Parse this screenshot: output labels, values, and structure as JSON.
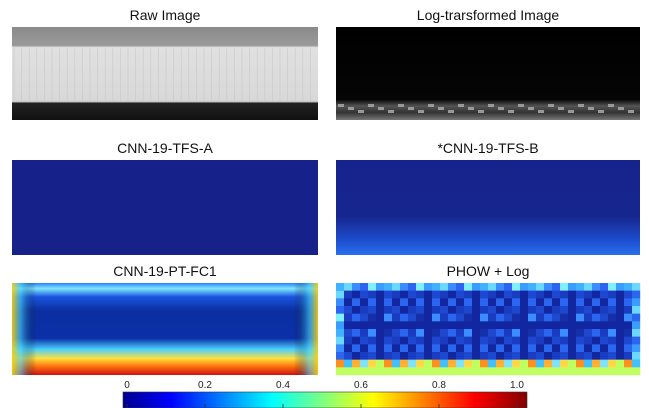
{
  "panels": [
    {
      "title": "Raw Image"
    },
    {
      "title": "Log-trarsformed Image"
    },
    {
      "title": "CNN-19-TFS-A"
    },
    {
      "title": "*CNN-19-TFS-B"
    },
    {
      "title": "CNN-19-PT-FC1"
    },
    {
      "title": "PHOW + Log"
    }
  ],
  "colorbar": {
    "range": [
      0,
      1
    ],
    "ticks": [
      0,
      0.2,
      0.4,
      0.6,
      0.8,
      {
        "value": 1,
        "label": "1.0"
      }
    ]
  }
}
